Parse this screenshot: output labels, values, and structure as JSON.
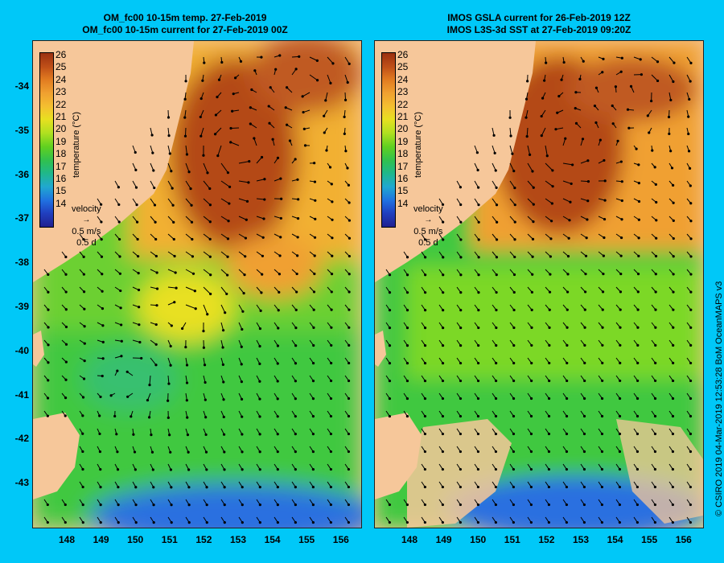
{
  "left_panel": {
    "title_line1": "OM_fc00 10-15m temp. 27-Feb-2019",
    "title_line2": "OM_fc00 10-15m current for 27-Feb-2019 00Z"
  },
  "right_panel": {
    "title_line1": "IMOS GSLA current for 26-Feb-2019 12Z",
    "title_line2": "IMOS L3S-3d SST at 27-Feb-2019 09:20Z"
  },
  "colorbar": {
    "title": "temperature (°C)",
    "ticks": [
      "26",
      "25",
      "24",
      "23",
      "22",
      "21",
      "20",
      "19",
      "18",
      "17",
      "16",
      "15",
      "14"
    ]
  },
  "velocity_legend": {
    "label": "velocity",
    "speed": "0.5 m/s",
    "duration": "0.5 d"
  },
  "y_axis_labels": [
    "-34",
    "-35",
    "-36",
    "-37",
    "-38",
    "-39",
    "-40",
    "-41",
    "-42",
    "-43"
  ],
  "x_axis_labels": [
    "148",
    "149",
    "150",
    "151",
    "152",
    "153",
    "154",
    "155",
    "156"
  ],
  "credit": "© CSIRO 2019   04-Mar-2019 12:53:28 BoM OceanMAPS v3",
  "colors": {
    "background": "#00c8f8",
    "land": "#f6c79a",
    "warm": "#c05a20",
    "mid": "#f0b030",
    "cool": "#40c840",
    "cold": "#2050d0"
  }
}
